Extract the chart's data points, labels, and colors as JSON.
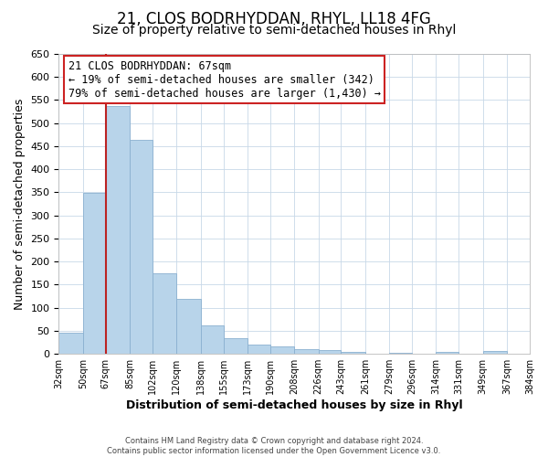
{
  "title": "21, CLOS BODRHYDDAN, RHYL, LL18 4FG",
  "subtitle": "Size of property relative to semi-detached houses in Rhyl",
  "xlabel": "Distribution of semi-detached houses by size in Rhyl",
  "ylabel": "Number of semi-detached properties",
  "bins": [
    32,
    50,
    67,
    85,
    102,
    120,
    138,
    155,
    173,
    190,
    208,
    226,
    243,
    261,
    279,
    296,
    314,
    331,
    349,
    367,
    384
  ],
  "counts": [
    46,
    348,
    537,
    463,
    175,
    119,
    62,
    35,
    20,
    17,
    10,
    8,
    5,
    0,
    3,
    0,
    4,
    0,
    6,
    0
  ],
  "bar_color": "#b8d4ea",
  "bar_edge_color": "#8ab0d0",
  "property_line_x": 67,
  "property_line_color": "#bb2222",
  "ylim": [
    0,
    650
  ],
  "yticks": [
    0,
    50,
    100,
    150,
    200,
    250,
    300,
    350,
    400,
    450,
    500,
    550,
    600,
    650
  ],
  "x_labels": [
    "32sqm",
    "50sqm",
    "67sqm",
    "85sqm",
    "102sqm",
    "120sqm",
    "138sqm",
    "155sqm",
    "173sqm",
    "190sqm",
    "208sqm",
    "226sqm",
    "243sqm",
    "261sqm",
    "279sqm",
    "296sqm",
    "314sqm",
    "331sqm",
    "349sqm",
    "367sqm",
    "384sqm"
  ],
  "annotation_title": "21 CLOS BODRHYDDAN: 67sqm",
  "annotation_line1": "← 19% of semi-detached houses are smaller (342)",
  "annotation_line2": "79% of semi-detached houses are larger (1,430) →",
  "annotation_box_color": "#ffffff",
  "annotation_box_edge_color": "#cc2222",
  "footer1": "Contains HM Land Registry data © Crown copyright and database right 2024.",
  "footer2": "Contains public sector information licensed under the Open Government Licence v3.0.",
  "background_color": "#ffffff",
  "grid_color": "#c8d8e8",
  "title_fontsize": 12,
  "subtitle_fontsize": 10,
  "annotation_fontsize": 8.5,
  "xlabel_fontsize": 9,
  "ylabel_fontsize": 9
}
